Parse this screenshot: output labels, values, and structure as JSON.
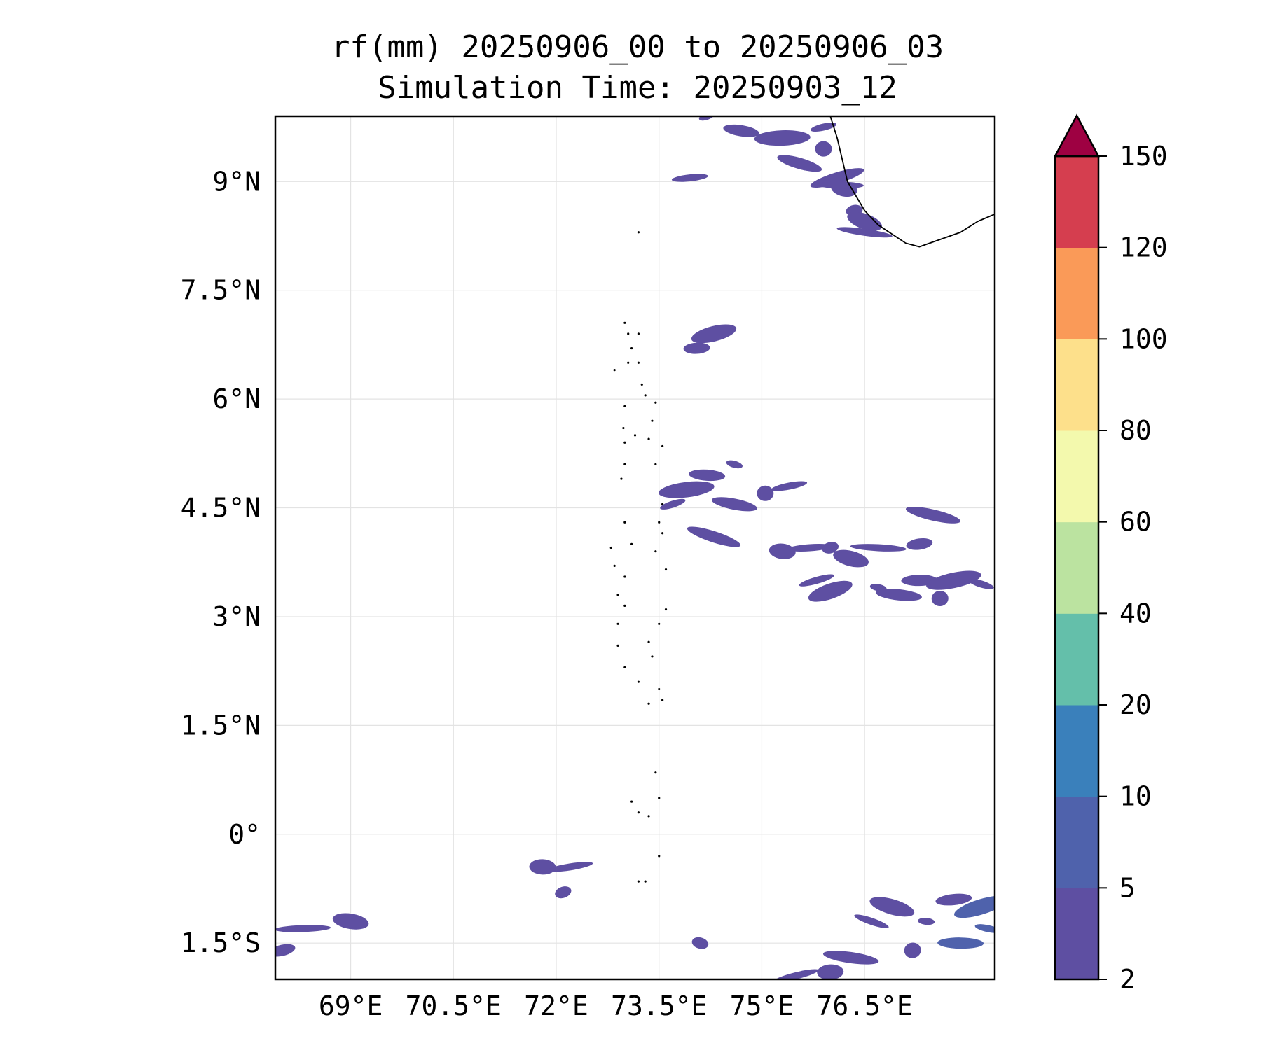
{
  "title": {
    "line1": "rf(mm) 20250906_00 to 20250906_03",
    "line2": "Simulation Time: 20250903_12"
  },
  "map": {
    "lon_range": [
      67.9,
      78.4
    ],
    "lat_range": [
      -2.0,
      9.9
    ],
    "lon_ticks": [
      {
        "value": 69.0,
        "label": "69°E"
      },
      {
        "value": 70.5,
        "label": "70.5°E"
      },
      {
        "value": 72.0,
        "label": "72°E"
      },
      {
        "value": 73.5,
        "label": "73.5°E"
      },
      {
        "value": 75.0,
        "label": "75°E"
      },
      {
        "value": 76.5,
        "label": "76.5°E"
      }
    ],
    "lat_ticks": [
      {
        "value": 9.0,
        "label": "9°N"
      },
      {
        "value": 7.5,
        "label": "7.5°N"
      },
      {
        "value": 6.0,
        "label": "6°N"
      },
      {
        "value": 4.5,
        "label": "4.5°N"
      },
      {
        "value": 3.0,
        "label": "3°N"
      },
      {
        "value": 1.5,
        "label": "1.5°N"
      },
      {
        "value": 0.0,
        "label": "0°"
      },
      {
        "value": -1.5,
        "label": "1.5°S"
      }
    ],
    "gridlines": true,
    "coastline_india": [
      [
        76.0,
        9.9
      ],
      [
        76.1,
        9.6
      ],
      [
        76.25,
        9.0
      ],
      [
        76.5,
        8.6
      ],
      [
        76.7,
        8.4
      ],
      [
        77.1,
        8.15
      ],
      [
        77.3,
        8.1
      ],
      [
        77.6,
        8.2
      ],
      [
        77.9,
        8.3
      ],
      [
        78.15,
        8.45
      ],
      [
        78.4,
        8.55
      ]
    ],
    "islands": [
      [
        73.2,
        8.3
      ],
      [
        73.0,
        7.05
      ],
      [
        73.05,
        6.9
      ],
      [
        73.2,
        6.9
      ],
      [
        73.1,
        6.7
      ],
      [
        73.05,
        6.5
      ],
      [
        73.2,
        6.5
      ],
      [
        73.25,
        6.2
      ],
      [
        72.85,
        6.4
      ],
      [
        73.3,
        6.05
      ],
      [
        73.0,
        5.9
      ],
      [
        72.98,
        5.6
      ],
      [
        73.0,
        5.4
      ],
      [
        73.15,
        5.5
      ],
      [
        73.0,
        5.1
      ],
      [
        73.45,
        5.95
      ],
      [
        73.4,
        5.7
      ],
      [
        73.35,
        5.45
      ],
      [
        73.55,
        5.35
      ],
      [
        73.45,
        5.1
      ],
      [
        72.95,
        4.9
      ],
      [
        73.55,
        4.55
      ],
      [
        73.5,
        4.3
      ],
      [
        73.55,
        4.15
      ],
      [
        73.0,
        4.3
      ],
      [
        73.1,
        4.0
      ],
      [
        72.8,
        3.95
      ],
      [
        72.85,
        3.7
      ],
      [
        73.0,
        3.55
      ],
      [
        73.45,
        3.9
      ],
      [
        73.6,
        3.65
      ],
      [
        72.9,
        3.3
      ],
      [
        73.0,
        3.15
      ],
      [
        72.9,
        2.9
      ],
      [
        73.5,
        2.9
      ],
      [
        73.6,
        3.1
      ],
      [
        72.9,
        2.6
      ],
      [
        73.35,
        2.65
      ],
      [
        73.4,
        2.45
      ],
      [
        73.0,
        2.3
      ],
      [
        73.2,
        2.1
      ],
      [
        73.5,
        2.0
      ],
      [
        73.35,
        1.8
      ],
      [
        73.55,
        1.85
      ],
      [
        73.45,
        0.85
      ],
      [
        73.5,
        0.5
      ],
      [
        73.1,
        0.45
      ],
      [
        73.2,
        0.3
      ],
      [
        73.35,
        0.25
      ],
      [
        73.5,
        -0.3
      ],
      [
        73.2,
        -0.65
      ],
      [
        73.3,
        -0.65
      ]
    ]
  },
  "colorbar": {
    "levels": [
      2,
      5,
      10,
      20,
      40,
      60,
      80,
      100,
      120,
      150
    ],
    "labels": [
      "2",
      "5",
      "10",
      "20",
      "40",
      "60",
      "80",
      "100",
      "120",
      "150"
    ],
    "colors": [
      "#5e4fa2",
      "#4f62ac",
      "#3a80bb",
      "#64bfaa",
      "#bbe3a0",
      "#f3f9ad",
      "#fde08b",
      "#fa9a58",
      "#d53e4f"
    ],
    "extend_color": "#9e0142"
  },
  "chart_data": {
    "type": "heatmap",
    "variable": "rf(mm)",
    "period": [
      "20250906_00",
      "20250906_03"
    ],
    "simulation_time": "20250903_12",
    "rain_cells": [
      {
        "lon": 74.2,
        "lat": 9.9,
        "v": 3
      },
      {
        "lon": 74.7,
        "lat": 9.7,
        "v": 3
      },
      {
        "lon": 75.3,
        "lat": 9.6,
        "v": 3
      },
      {
        "lon": 75.9,
        "lat": 9.75,
        "v": 4
      },
      {
        "lon": 75.55,
        "lat": 9.25,
        "v": 3
      },
      {
        "lon": 75.9,
        "lat": 9.45,
        "v": 4
      },
      {
        "lon": 73.95,
        "lat": 9.05,
        "v": 3
      },
      {
        "lon": 76.1,
        "lat": 9.05,
        "v": 3
      },
      {
        "lon": 76.2,
        "lat": 8.9,
        "v": 3
      },
      {
        "lon": 76.15,
        "lat": 8.95,
        "v": 4
      },
      {
        "lon": 76.35,
        "lat": 8.6,
        "v": 4
      },
      {
        "lon": 76.5,
        "lat": 8.45,
        "v": 4
      },
      {
        "lon": 76.5,
        "lat": 8.3,
        "v": 3
      },
      {
        "lon": 74.05,
        "lat": 6.7,
        "v": 3
      },
      {
        "lon": 74.3,
        "lat": 6.9,
        "v": 3
      },
      {
        "lon": 74.6,
        "lat": 5.1,
        "v": 4
      },
      {
        "lon": 74.2,
        "lat": 4.95,
        "v": 3
      },
      {
        "lon": 73.9,
        "lat": 4.75,
        "v": 4
      },
      {
        "lon": 73.7,
        "lat": 4.55,
        "v": 4
      },
      {
        "lon": 74.6,
        "lat": 4.55,
        "v": 4
      },
      {
        "lon": 75.05,
        "lat": 4.7,
        "v": 3
      },
      {
        "lon": 75.4,
        "lat": 4.8,
        "v": 3
      },
      {
        "lon": 74.3,
        "lat": 4.1,
        "v": 3
      },
      {
        "lon": 75.3,
        "lat": 3.9,
        "v": 4
      },
      {
        "lon": 75.7,
        "lat": 3.95,
        "v": 4
      },
      {
        "lon": 76.0,
        "lat": 3.95,
        "v": 3
      },
      {
        "lon": 76.3,
        "lat": 3.8,
        "v": 4
      },
      {
        "lon": 76.7,
        "lat": 3.95,
        "v": 4
      },
      {
        "lon": 77.3,
        "lat": 4.0,
        "v": 4
      },
      {
        "lon": 76.0,
        "lat": 3.35,
        "v": 3
      },
      {
        "lon": 76.7,
        "lat": 3.4,
        "v": 4
      },
      {
        "lon": 77.3,
        "lat": 3.5,
        "v": 3
      },
      {
        "lon": 77.8,
        "lat": 3.5,
        "v": 3
      },
      {
        "lon": 78.2,
        "lat": 3.45,
        "v": 4
      },
      {
        "lon": 77.0,
        "lat": 3.3,
        "v": 3
      },
      {
        "lon": 77.6,
        "lat": 3.25,
        "v": 3
      },
      {
        "lon": 75.8,
        "lat": 3.5,
        "v": 3
      },
      {
        "lon": 77.5,
        "lat": 4.4,
        "v": 3
      },
      {
        "lon": 71.8,
        "lat": -0.45,
        "v": 3
      },
      {
        "lon": 72.2,
        "lat": -0.45,
        "v": 4
      },
      {
        "lon": 72.1,
        "lat": -0.8,
        "v": 3
      },
      {
        "lon": 69.0,
        "lat": -1.2,
        "v": 3
      },
      {
        "lon": 68.3,
        "lat": -1.3,
        "v": 3
      },
      {
        "lon": 68.0,
        "lat": -1.6,
        "v": 3
      },
      {
        "lon": 76.9,
        "lat": -1.0,
        "v": 4
      },
      {
        "lon": 77.4,
        "lat": -1.2,
        "v": 4
      },
      {
        "lon": 77.8,
        "lat": -0.9,
        "v": 4
      },
      {
        "lon": 78.2,
        "lat": -1.0,
        "v": 6
      },
      {
        "lon": 78.3,
        "lat": -1.3,
        "v": 8
      },
      {
        "lon": 77.9,
        "lat": -1.5,
        "v": 5
      },
      {
        "lon": 77.2,
        "lat": -1.6,
        "v": 4
      },
      {
        "lon": 76.6,
        "lat": -1.2,
        "v": 4
      },
      {
        "lon": 76.3,
        "lat": -1.7,
        "v": 4
      },
      {
        "lon": 76.0,
        "lat": -1.9,
        "v": 4
      },
      {
        "lon": 75.5,
        "lat": -1.95,
        "v": 3
      },
      {
        "lon": 74.1,
        "lat": -1.5,
        "v": 3
      }
    ]
  }
}
